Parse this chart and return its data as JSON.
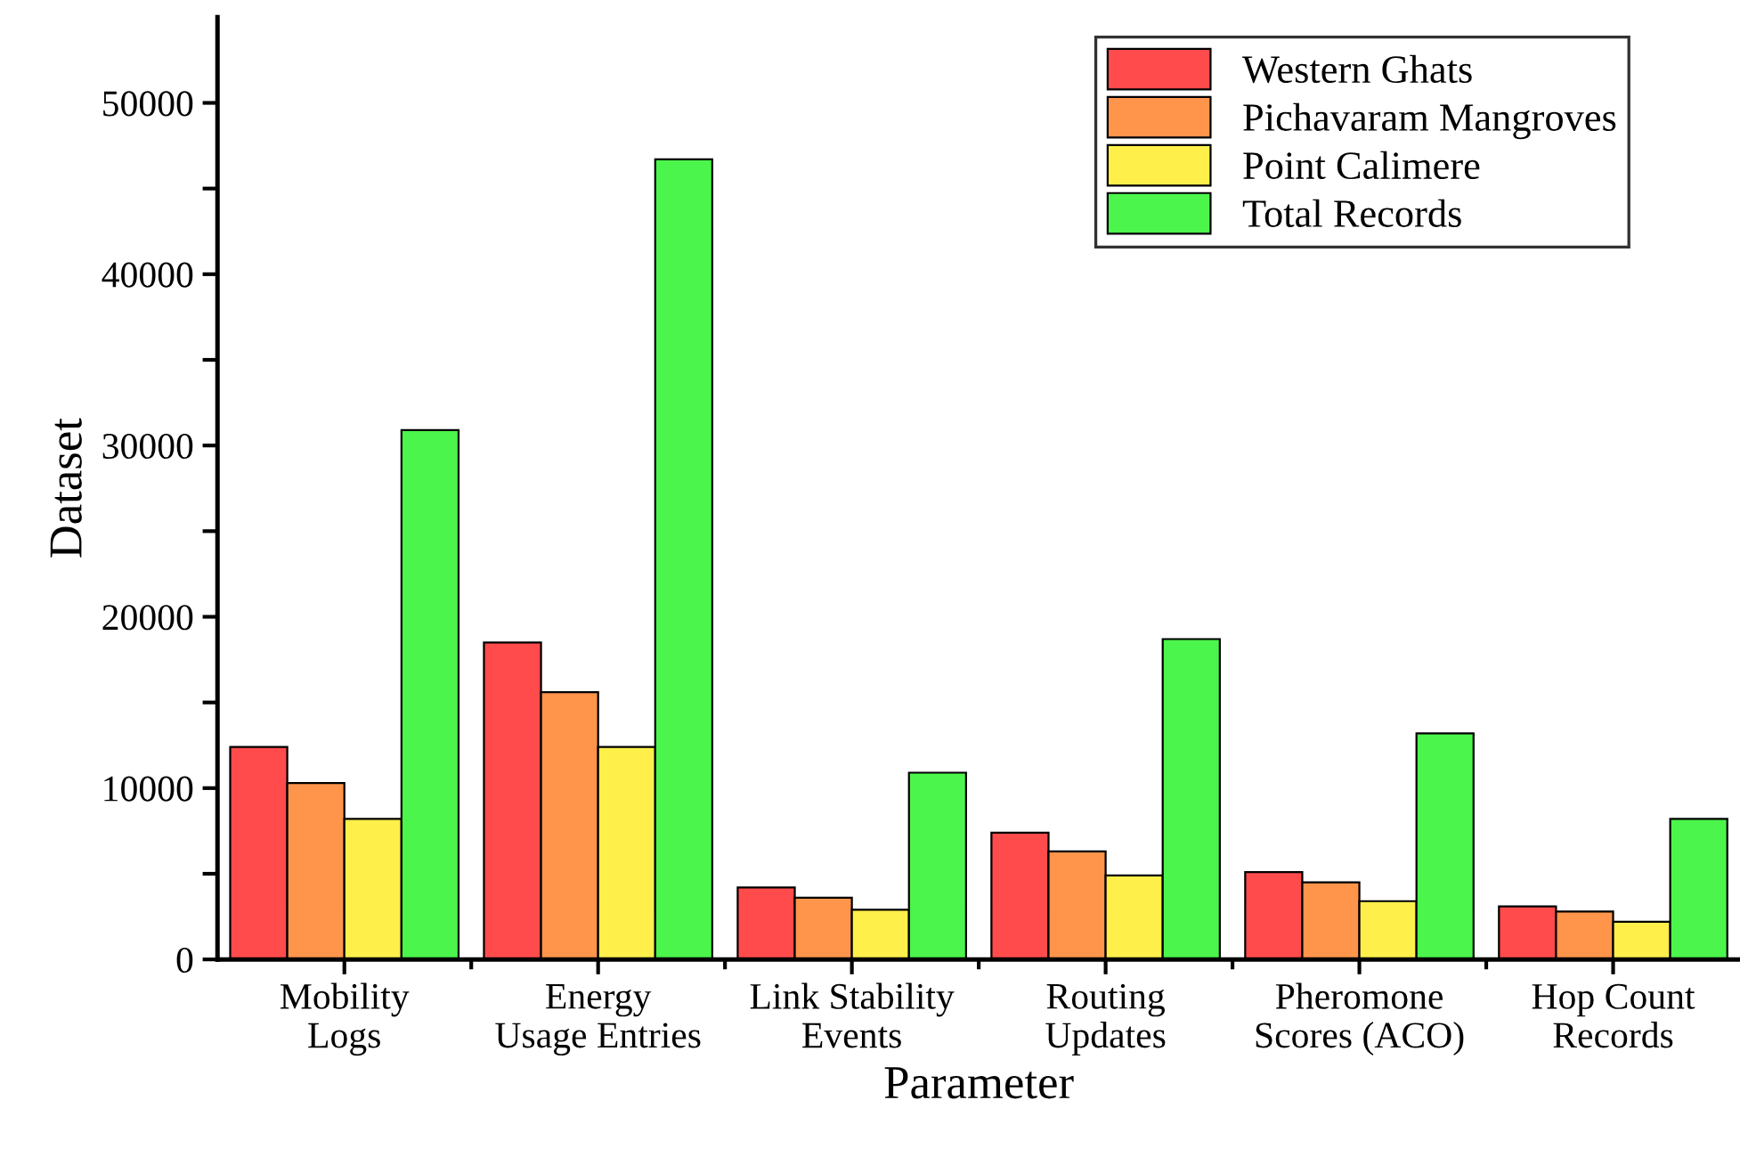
{
  "chart_data": {
    "type": "bar",
    "xlabel": "Parameter",
    "ylabel": "Dataset",
    "categories": [
      "Mobility\nLogs",
      "Energy\nUsage Entries",
      "Link Stability\nEvents",
      "Routing\nUpdates",
      "Pheromone\nScores (ACO)",
      "Hop Count\nRecords"
    ],
    "series": [
      {
        "name": "Western Ghats",
        "color": "#ff4b4b",
        "values": [
          12400,
          18500,
          4200,
          7400,
          5100,
          3100
        ]
      },
      {
        "name": "Pichavaram Mangroves",
        "color": "#ff944b",
        "values": [
          10300,
          15600,
          3600,
          6300,
          4500,
          2800
        ]
      },
      {
        "name": "Point Calimere",
        "color": "#ffef4b",
        "values": [
          8200,
          12400,
          2900,
          4900,
          3400,
          2200
        ]
      },
      {
        "name": "Total Records",
        "color": "#4bf54b",
        "values": [
          30900,
          46700,
          10900,
          18700,
          13200,
          8200
        ]
      }
    ],
    "ylim": [
      0,
      55000
    ],
    "yticks": [
      0,
      {
        "value": 5000,
        "label": null
      },
      10000,
      {
        "value": 15000,
        "label": null
      },
      20000,
      {
        "value": 25000,
        "label": null
      },
      30000,
      {
        "value": 35000,
        "label": null
      },
      40000,
      {
        "value": 45000,
        "label": null
      },
      50000
    ],
    "grid": false,
    "legend": "top right"
  }
}
